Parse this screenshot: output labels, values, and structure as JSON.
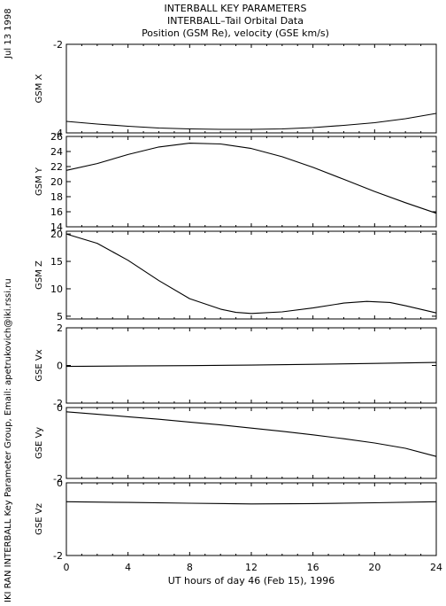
{
  "side_left": {
    "date": "Jul 13 1998",
    "credit": "IKI RAN INTERBALL Key Parameter Group, Email: apetrukovich@iki.rssi.ru"
  },
  "chart_data": {
    "type": "line",
    "title": "INTERBALL KEY PARAMETERS",
    "subtitle": "INTERBALL–Tail Orbital Data",
    "subtitle2": "Position (GSM Re), velocity (GSE km/s)",
    "xlabel": "UT hours of day  46 (Feb 15), 1996",
    "xlim": [
      0,
      24
    ],
    "xticks": [
      "0",
      "4",
      "8",
      "12",
      "16",
      "20",
      "24"
    ],
    "panels": [
      {
        "ylabel": "GSM X",
        "ylim": [
          -4,
          -2
        ],
        "yticks": [
          {
            "v": -2,
            "label": "-2"
          },
          {
            "v": -4,
            "label": "-4"
          }
        ],
        "x": [
          0,
          2,
          4,
          6,
          8,
          10,
          12,
          14,
          16,
          18,
          20,
          22,
          24
        ],
        "y": [
          -3.74,
          -3.8,
          -3.85,
          -3.89,
          -3.91,
          -3.92,
          -3.92,
          -3.91,
          -3.88,
          -3.83,
          -3.77,
          -3.68,
          -3.56
        ]
      },
      {
        "ylabel": "GSM Y",
        "ylim": [
          14,
          26
        ],
        "yticks": [
          {
            "v": 14,
            "label": "14"
          },
          {
            "v": 16,
            "label": "16"
          },
          {
            "v": 18,
            "label": "18"
          },
          {
            "v": 20,
            "label": "20"
          },
          {
            "v": 22,
            "label": "22"
          },
          {
            "v": 24,
            "label": "24"
          },
          {
            "v": 26,
            "label": "26"
          }
        ],
        "x": [
          0,
          2,
          4,
          6,
          8,
          10,
          12,
          14,
          16,
          18,
          20,
          22,
          24
        ],
        "y": [
          21.5,
          22.4,
          23.6,
          24.6,
          25.1,
          25.0,
          24.4,
          23.3,
          21.9,
          20.3,
          18.7,
          17.2,
          15.8
        ]
      },
      {
        "ylabel": "GSM Z",
        "ylim": [
          4.5,
          20.5
        ],
        "yticks": [
          {
            "v": 5,
            "label": "5"
          },
          {
            "v": 10,
            "label": "10"
          },
          {
            "v": 15,
            "label": "15"
          },
          {
            "v": 20,
            "label": "20"
          }
        ],
        "x": [
          0,
          2,
          4,
          6,
          8,
          10,
          11,
          12,
          14,
          16,
          18,
          19.5,
          21,
          22,
          24
        ],
        "y": [
          20.0,
          18.3,
          15.2,
          11.5,
          8.2,
          6.3,
          5.7,
          5.5,
          5.8,
          6.5,
          7.4,
          7.7,
          7.5,
          6.9,
          5.6
        ]
      },
      {
        "ylabel": "GSE Vx",
        "ylim": [
          -2,
          2
        ],
        "yticks": [
          {
            "v": 2,
            "label": "2"
          },
          {
            "v": 0,
            "label": "0"
          },
          {
            "v": -2,
            "label": "-2"
          }
        ],
        "x": [
          0,
          4,
          8,
          12,
          16,
          20,
          24
        ],
        "y": [
          -0.05,
          -0.03,
          -0.01,
          0.02,
          0.06,
          0.11,
          0.16
        ]
      },
      {
        "ylabel": "GSE Vy",
        "ylim": [
          -2,
          0
        ],
        "yticks": [
          {
            "v": 0,
            "label": "0"
          },
          {
            "v": -2,
            "label": "-2"
          }
        ],
        "x": [
          0,
          2,
          4,
          6,
          8,
          10,
          12,
          14,
          16,
          18,
          20,
          22,
          24
        ],
        "y": [
          -0.12,
          -0.19,
          -0.26,
          -0.33,
          -0.41,
          -0.49,
          -0.58,
          -0.67,
          -0.77,
          -0.88,
          -1.0,
          -1.15,
          -1.38
        ]
      },
      {
        "ylabel": "GSE Vz",
        "ylim": [
          -2,
          0
        ],
        "yticks": [
          {
            "v": 0,
            "label": "0"
          },
          {
            "v": -2,
            "label": "-2"
          }
        ],
        "x": [
          0,
          4,
          8,
          12,
          16,
          20,
          24
        ],
        "y": [
          -0.52,
          -0.54,
          -0.56,
          -0.58,
          -0.57,
          -0.55,
          -0.52
        ]
      }
    ]
  }
}
